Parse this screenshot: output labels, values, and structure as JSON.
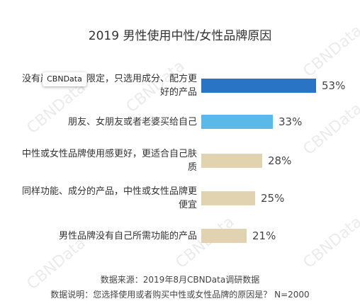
{
  "chart_data": {
    "type": "bar",
    "orientation": "horizontal",
    "title": "2019 男性使用中性/女性品牌原因",
    "categories": [
      "没有严格性别的限定，只选用成分、配方更好的产品",
      "朋友、女朋友或者老婆买给自己",
      "中性或女性品牌使用感更好，更适合自己肤质",
      "同样功能、成分的产品，中性或女性品牌更便宜",
      "男性品牌没有自己所需功能的产品"
    ],
    "values": [
      53,
      33,
      28,
      25,
      21
    ],
    "value_labels": [
      "53%",
      "33%",
      "28%",
      "25%",
      "21%"
    ],
    "bar_colors": [
      "#2a74c6",
      "#5ab9e8",
      "#e2d3b0",
      "#e2d3b0",
      "#e2d3b0"
    ],
    "xlim": [
      0,
      53
    ]
  },
  "overlay_badge": "CBNData",
  "watermark": "CBNData",
  "footer": {
    "source": "数据来源：2019年8月CBNData调研数据",
    "note": "数据说明：您选择使用或者购买中性或女性品牌的原因是？  N=2000"
  }
}
